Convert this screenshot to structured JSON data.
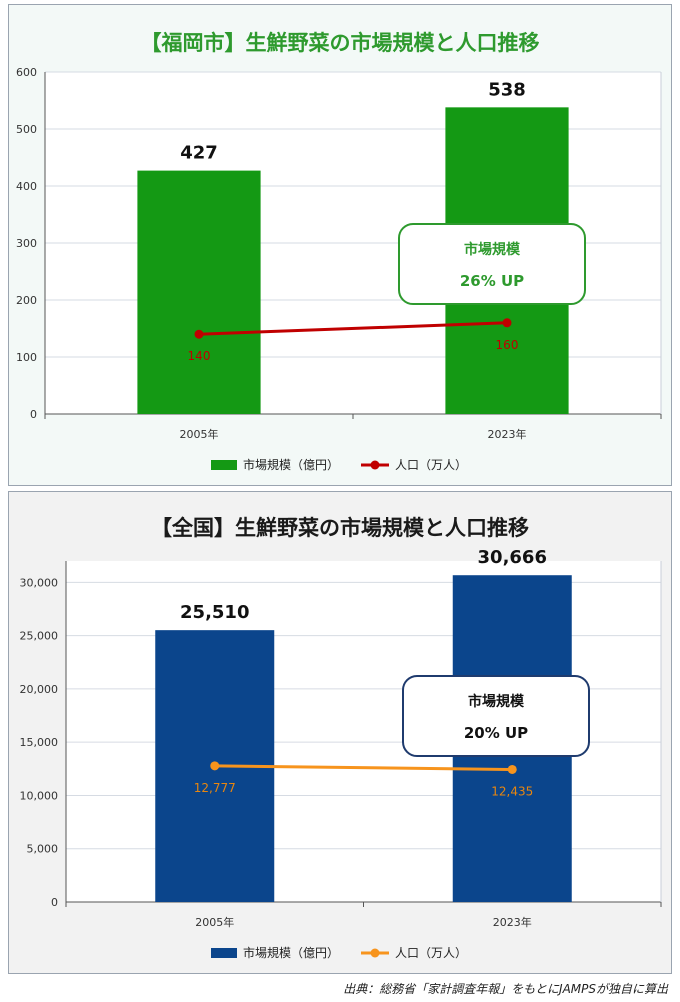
{
  "source_note": "出典：総務省「家計調査年報」をもとにJAMPSが独自に算出",
  "chart_data": [
    {
      "type": "bar",
      "title": "【福岡市】生鮮野菜の市場規模と人口推移",
      "categories": [
        "2005年",
        "2023年"
      ],
      "ylim": [
        0,
        600
      ],
      "yticks": [
        "0",
        "100",
        "200",
        "300",
        "400",
        "500",
        "600"
      ],
      "ytick_values": [
        0,
        100,
        200,
        300,
        400,
        500,
        600
      ],
      "grid": true,
      "legend_position": "bottom",
      "series": [
        {
          "name": "市場規模（億円）",
          "kind": "bar",
          "values": [
            427,
            538
          ],
          "labels": [
            "427",
            "538"
          ],
          "color": "#149914"
        },
        {
          "name": "人口（万人）",
          "kind": "line",
          "values": [
            140,
            160
          ],
          "labels": [
            "140",
            "160"
          ],
          "color": "#c00000",
          "label_color": "#c00000"
        }
      ],
      "callout": {
        "line1": "市場規模",
        "line2": "26% UP",
        "border_color": "#2e9a2e",
        "text_color": "#2e9a2e"
      }
    },
    {
      "type": "bar",
      "title": "【全国】生鮮野菜の市場規模と人口推移",
      "categories": [
        "2005年",
        "2023年"
      ],
      "ylim": [
        0,
        32000
      ],
      "yticks": [
        "0",
        "5,000",
        "10,000",
        "15,000",
        "20,000",
        "25,000",
        "30,000"
      ],
      "ytick_values": [
        0,
        5000,
        10000,
        15000,
        20000,
        25000,
        30000
      ],
      "grid": true,
      "legend_position": "bottom",
      "series": [
        {
          "name": "市場規模（億円）",
          "kind": "bar",
          "values": [
            25510,
            30666
          ],
          "labels": [
            "25,510",
            "30,666"
          ],
          "color": "#0b458c"
        },
        {
          "name": "人口（万人）",
          "kind": "line",
          "values": [
            12777,
            12435
          ],
          "labels": [
            "12,777",
            "12,435"
          ],
          "color": "#f7941d",
          "label_color": "#e8860f"
        }
      ],
      "callout": {
        "line1": "市場規模",
        "line2": "20% UP",
        "border_color": "#1f3b6e",
        "text_color": "#111111"
      }
    }
  ]
}
